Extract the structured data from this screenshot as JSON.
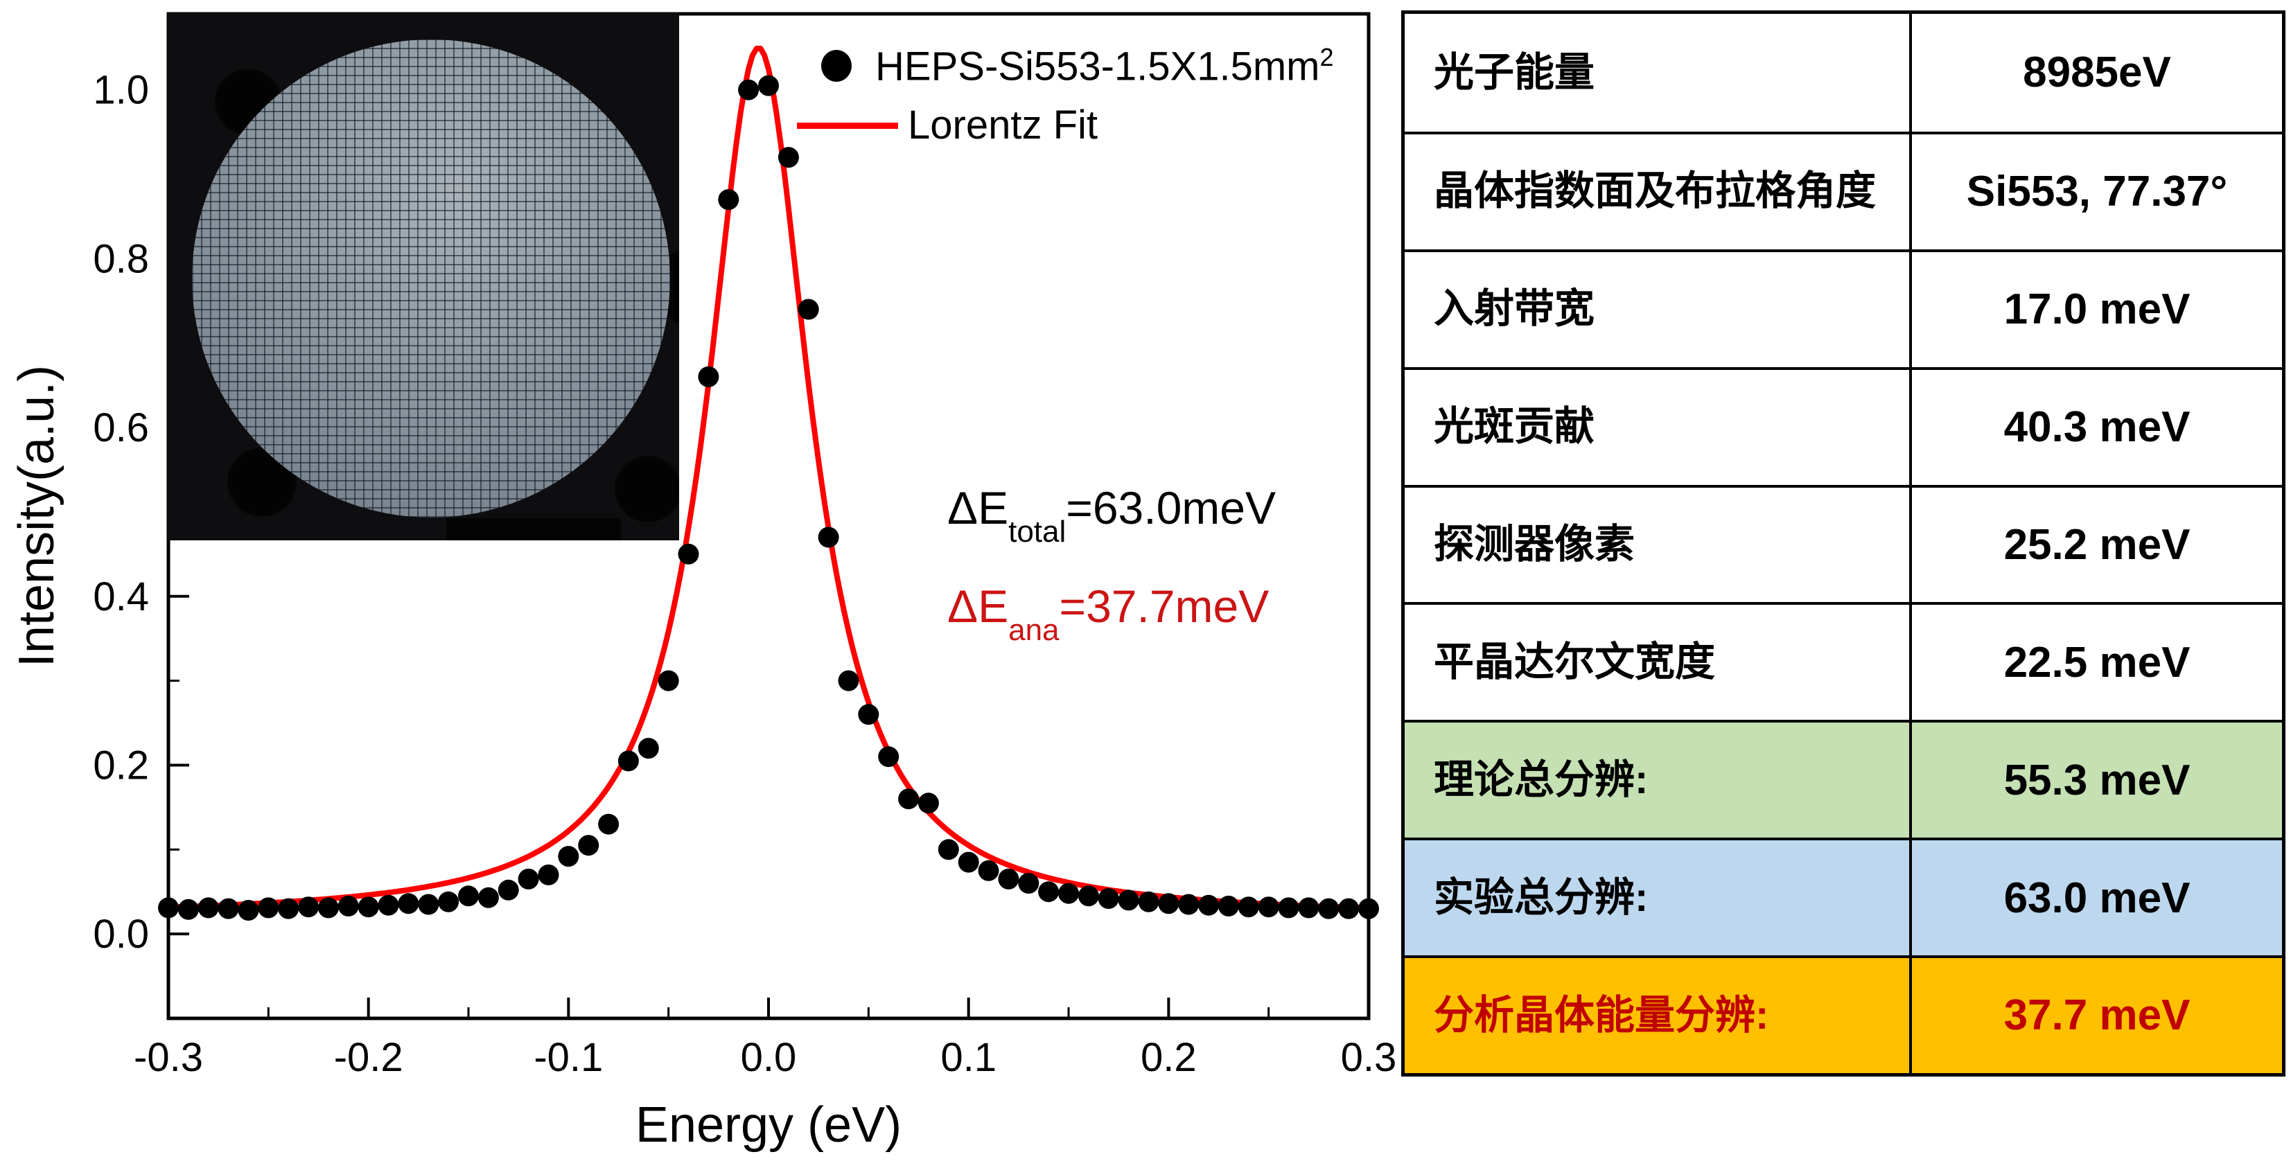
{
  "figure": {
    "legend": {
      "series1_label": "HEPS-Si553-1.5X1.5mm",
      "series1_sup": "2",
      "series2_label": "Lorentz Fit"
    },
    "annotations": {
      "total_prefix": "ΔE",
      "total_sub": "total",
      "total_value": "=63.0meV",
      "ana_prefix": "ΔE",
      "ana_sub": "ana",
      "ana_value": "=37.7meV"
    },
    "colors": {
      "fit_line": "#ff0000",
      "data_marker": "#000000",
      "annotation_red": "#cc1414",
      "wafer_gray": "#8d98a1",
      "holder_black": "#0e0e10"
    }
  },
  "chart_data": {
    "type": "scatter",
    "title": "",
    "xlabel": "Energy (eV)",
    "ylabel": "Intensity(a.u.)",
    "xlim": [
      -0.3,
      0.3
    ],
    "ylim": [
      -0.1,
      1.09
    ],
    "x_tick_labels": [
      "-0.3",
      "-0.2",
      "-0.1",
      "0.0",
      "0.1",
      "0.2",
      "0.3"
    ],
    "x_ticks": [
      -0.3,
      -0.2,
      -0.1,
      0.0,
      0.1,
      0.2,
      0.3
    ],
    "x_minor_ticks": [
      -0.25,
      -0.15,
      -0.05,
      0.05,
      0.15,
      0.25
    ],
    "y_tick_labels": [
      "0.0",
      "0.2",
      "0.4",
      "0.6",
      "0.8",
      "1.0"
    ],
    "y_ticks": [
      0.0,
      0.2,
      0.4,
      0.6,
      0.8,
      1.0
    ],
    "y_minor_ticks": [
      0.1,
      0.3,
      0.5,
      0.7,
      0.9
    ],
    "grid": false,
    "legend_position": "top-right-inside",
    "series": [
      {
        "name": "HEPS-Si553-1.5X1.5mm2",
        "type": "scatter",
        "marker": "circle",
        "color": "#000000",
        "x": [
          -0.3,
          -0.29,
          -0.28,
          -0.27,
          -0.26,
          -0.25,
          -0.24,
          -0.23,
          -0.22,
          -0.21,
          -0.2,
          -0.19,
          -0.18,
          -0.17,
          -0.16,
          -0.15,
          -0.14,
          -0.13,
          -0.12,
          -0.11,
          -0.1,
          -0.09,
          -0.08,
          -0.07,
          -0.06,
          -0.05,
          -0.04,
          -0.03,
          -0.02,
          -0.01,
          0.0,
          0.01,
          0.02,
          0.03,
          0.04,
          0.05,
          0.06,
          0.07,
          0.08,
          0.09,
          0.1,
          0.11,
          0.12,
          0.13,
          0.14,
          0.15,
          0.16,
          0.17,
          0.18,
          0.19,
          0.2,
          0.21,
          0.22,
          0.23,
          0.24,
          0.25,
          0.26,
          0.27,
          0.28,
          0.29,
          0.3
        ],
        "y": [
          0.031,
          0.029,
          0.031,
          0.03,
          0.028,
          0.031,
          0.03,
          0.032,
          0.031,
          0.033,
          0.032,
          0.034,
          0.036,
          0.035,
          0.038,
          0.045,
          0.043,
          0.052,
          0.065,
          0.07,
          0.092,
          0.105,
          0.13,
          0.205,
          0.22,
          0.3,
          0.45,
          0.66,
          0.87,
          1.0,
          1.005,
          0.92,
          0.74,
          0.47,
          0.3,
          0.26,
          0.21,
          0.16,
          0.155,
          0.1,
          0.085,
          0.075,
          0.065,
          0.06,
          0.05,
          0.048,
          0.045,
          0.042,
          0.04,
          0.038,
          0.036,
          0.035,
          0.034,
          0.033,
          0.032,
          0.032,
          0.031,
          0.031,
          0.03,
          0.03,
          0.03
        ]
      },
      {
        "name": "Lorentz Fit",
        "type": "line",
        "color": "#ff0000",
        "fit_function": "lorentzian",
        "params": {
          "center": -0.005,
          "fwhm": 0.063,
          "amplitude": 1.03,
          "baseline": 0.02
        }
      }
    ]
  },
  "table": {
    "rows": [
      {
        "label": "光子能量",
        "value": "8985eV",
        "bg": "#ffffff",
        "color": "#000000"
      },
      {
        "label": "晶体指数面及布拉格角度",
        "value": "Si553, 77.37°",
        "bg": "#ffffff",
        "color": "#000000"
      },
      {
        "label": "入射带宽",
        "value": "17.0 meV",
        "bg": "#ffffff",
        "color": "#000000"
      },
      {
        "label": "光斑贡献",
        "value": "40.3 meV",
        "bg": "#ffffff",
        "color": "#000000"
      },
      {
        "label": "探测器像素",
        "value": "25.2 meV",
        "bg": "#ffffff",
        "color": "#000000"
      },
      {
        "label": "平晶达尔文宽度",
        "value": "22.5 meV",
        "bg": "#ffffff",
        "color": "#000000"
      },
      {
        "label": "理论总分辨:",
        "value": "55.3 meV",
        "bg": "#c5e0b3",
        "color": "#000000"
      },
      {
        "label": "实验总分辨:",
        "value": "63.0 meV",
        "bg": "#bdd7ee",
        "color": "#000000"
      },
      {
        "label": "分析晶体能量分辨:",
        "value": "37.7 meV",
        "bg": "#ffc000",
        "color": "#c00000"
      }
    ]
  }
}
